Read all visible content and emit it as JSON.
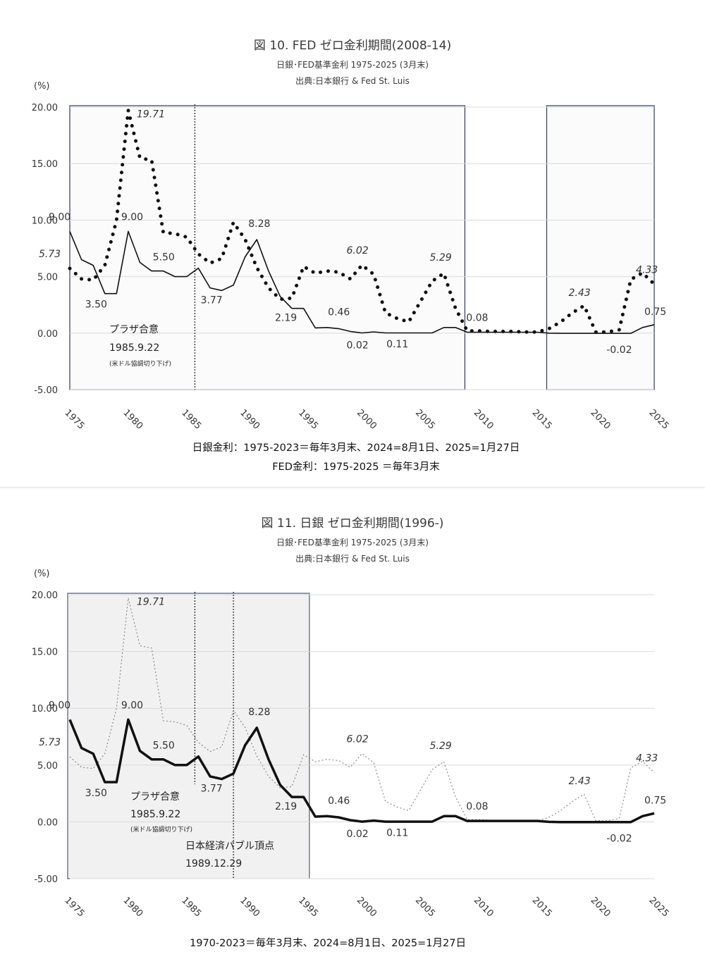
{
  "colors": {
    "boj": "#111111",
    "fed": "#111111",
    "fed_faint": "#777777",
    "grid": "#d9d9d9",
    "box": "#2f3b59",
    "shade": "#f1f1f1"
  },
  "chart_data": [
    {
      "type": "line",
      "title": "図 10. FED ゼロ金利期間(2008-14)",
      "subtitle": "日銀･FED基準金利  1975-2025 (3月末)",
      "source": "出典:日本銀行 & Fed St. Luis",
      "ylabel": "(%)",
      "ylim": [
        -5,
        20
      ],
      "yticks": [
        "20.00",
        "15.00",
        "10.00",
        "5.00",
        "0.00",
        "-5.00"
      ],
      "xlim": [
        1975,
        2025
      ],
      "xticks": [
        "1975",
        "1980",
        "1985",
        "1990",
        "1995",
        "2000",
        "2005",
        "2010",
        "2015",
        "2020",
        "2025"
      ],
      "x": [
        1975,
        1976,
        1977,
        1978,
        1979,
        1980,
        1981,
        1982,
        1983,
        1984,
        1985,
        1986,
        1987,
        1988,
        1989,
        1990,
        1991,
        1992,
        1993,
        1994,
        1995,
        1996,
        1997,
        1998,
        1999,
        2000,
        2001,
        2002,
        2003,
        2004,
        2005,
        2006,
        2007,
        2008,
        2009,
        2010,
        2011,
        2012,
        2013,
        2014,
        2015,
        2016,
        2017,
        2018,
        2019,
        2020,
        2021,
        2022,
        2023,
        2024,
        2025
      ],
      "series": [
        {
          "name": "",
          "style": "solid",
          "values": [
            9.0,
            6.5,
            6.0,
            3.5,
            3.5,
            9.0,
            6.25,
            5.5,
            5.5,
            5.0,
            5.0,
            5.75,
            4.0,
            3.77,
            4.25,
            6.75,
            8.28,
            5.5,
            3.25,
            2.19,
            2.19,
            0.46,
            0.5,
            0.4,
            0.15,
            0.02,
            0.11,
            0.02,
            0.02,
            0.02,
            0.02,
            0.02,
            0.5,
            0.5,
            0.08,
            0.08,
            0.08,
            0.08,
            0.08,
            0.08,
            0.08,
            0.0,
            -0.02,
            -0.02,
            -0.02,
            -0.02,
            -0.02,
            -0.02,
            -0.02,
            0.5,
            0.75
          ]
        },
        {
          "name": "",
          "style": "dotted",
          "values": [
            5.73,
            4.8,
            4.7,
            6.0,
            10.0,
            19.71,
            15.5,
            15.3,
            8.9,
            8.8,
            8.5,
            7.0,
            6.2,
            6.6,
            9.8,
            8.3,
            5.8,
            4.0,
            3.0,
            3.1,
            5.9,
            5.3,
            5.5,
            5.4,
            4.8,
            6.02,
            5.2,
            1.8,
            1.3,
            1.0,
            2.8,
            4.6,
            5.29,
            2.2,
            0.2,
            0.2,
            0.15,
            0.15,
            0.15,
            0.1,
            0.1,
            0.4,
            1.0,
            1.8,
            2.43,
            0.1,
            0.1,
            0.3,
            4.75,
            5.33,
            4.33
          ]
        }
      ],
      "labels": [
        {
          "text": "9.00",
          "x": 1975,
          "y": 9.0
        },
        {
          "text": "5.73",
          "x": 1975,
          "y": 5.73,
          "italic": true
        },
        {
          "text": "19.71",
          "x": 1980,
          "y": 19.71,
          "italic": true
        },
        {
          "text": "9.00",
          "x": 1980,
          "y": 9.0
        },
        {
          "text": "3.50",
          "x": 1978,
          "y": 3.5
        },
        {
          "text": "5.50",
          "x": 1983,
          "y": 5.5
        },
        {
          "text": "8.28",
          "x": 1991,
          "y": 8.28
        },
        {
          "text": "3.77",
          "x": 1988,
          "y": 3.77
        },
        {
          "text": "2.19",
          "x": 1994,
          "y": 2.19
        },
        {
          "text": "0.46",
          "x": 1996,
          "y": 0.46
        },
        {
          "text": "0.02",
          "x": 2000,
          "y": 0.02
        },
        {
          "text": "0.11",
          "x": 2001,
          "y": 0.11
        },
        {
          "text": "6.02",
          "x": 2000,
          "y": 6.02,
          "italic": true
        },
        {
          "text": "5.29",
          "x": 2007,
          "y": 5.29,
          "italic": true
        },
        {
          "text": "0.08",
          "x": 2010,
          "y": 0.08
        },
        {
          "text": "2.43",
          "x": 2019,
          "y": 2.43,
          "italic": true
        },
        {
          "text": "4.33",
          "x": 2025,
          "y": 4.33,
          "italic": true
        },
        {
          "text": "0.75",
          "x": 2025,
          "y": 0.75
        },
        {
          "text": "-0.02",
          "x": 2022,
          "y": -0.02
        }
      ],
      "annotations": [
        {
          "lines": [
            "プラザ合意",
            "1985.9.22",
            "(米ドル協調切り下げ)"
          ],
          "x": 1985.7
        }
      ],
      "highlight_periods": [
        [
          1975,
          2008.8
        ],
        [
          2015.8,
          2025
        ]
      ],
      "footnotes": [
        "日銀金利：1975-2023＝毎年3月末、2024=8月1日、2025=1月27日",
        "FED金利：1975-2025 ＝毎年3月末"
      ]
    },
    {
      "type": "line",
      "title": "図 11.  日銀 ゼロ金利期間(1996-)",
      "subtitle": "日銀･FED基準金利 1975-2025 (3月末)",
      "source": "出典:日本銀行 & Fed St. Luis",
      "ylabel": "(%)",
      "ylim": [
        -5,
        20
      ],
      "yticks": [
        "20.00",
        "15.00",
        "10.00",
        "5.00",
        "0.00",
        "-5.00"
      ],
      "xlim": [
        1975,
        2025
      ],
      "xticks": [
        "1975",
        "1980",
        "1985",
        "1990",
        "1995",
        "2000",
        "2005",
        "2010",
        "2015",
        "2020",
        "2025"
      ],
      "labels": [
        {
          "text": "9.00",
          "x": 1975,
          "y": 9.0
        },
        {
          "text": "5.73",
          "x": 1975,
          "y": 5.73,
          "italic": true
        },
        {
          "text": "19.71",
          "x": 1980,
          "y": 19.71,
          "italic": true
        },
        {
          "text": "9.00",
          "x": 1980,
          "y": 9.0
        },
        {
          "text": "3.50",
          "x": 1978,
          "y": 3.5
        },
        {
          "text": "5.50",
          "x": 1983,
          "y": 5.5
        },
        {
          "text": "8.28",
          "x": 1991,
          "y": 8.28
        },
        {
          "text": "3.77",
          "x": 1988,
          "y": 3.77
        },
        {
          "text": "2.19",
          "x": 1994,
          "y": 2.19
        },
        {
          "text": "0.46",
          "x": 1996,
          "y": 0.46
        },
        {
          "text": "0.02",
          "x": 2000,
          "y": 0.02
        },
        {
          "text": "0.11",
          "x": 2001,
          "y": 0.11
        },
        {
          "text": "6.02",
          "x": 2000,
          "y": 6.02,
          "italic": true
        },
        {
          "text": "5.29",
          "x": 2007,
          "y": 5.29,
          "italic": true
        },
        {
          "text": "0.08",
          "x": 2010,
          "y": 0.08
        },
        {
          "text": "2.43",
          "x": 2019,
          "y": 2.43,
          "italic": true
        },
        {
          "text": "4.33",
          "x": 2025,
          "y": 4.33,
          "italic": true
        },
        {
          "text": "0.75",
          "x": 2025,
          "y": 0.75
        },
        {
          "text": "-0.02",
          "x": 2022,
          "y": -0.02
        }
      ],
      "annotations": [
        {
          "lines": [
            "プラザ合意",
            "1985.9.22",
            "(米ドル協調切り下げ)"
          ],
          "x": 1985.7
        },
        {
          "lines": [
            "日本経済バブル頂点",
            "1989.12.29"
          ],
          "x": 1989.0
        }
      ],
      "highlight_periods": [
        [
          1975,
          1995.5
        ]
      ],
      "footnotes": [
        "1970-2023＝毎年3月末、2024=8月1日、2025=1月27日"
      ]
    }
  ]
}
